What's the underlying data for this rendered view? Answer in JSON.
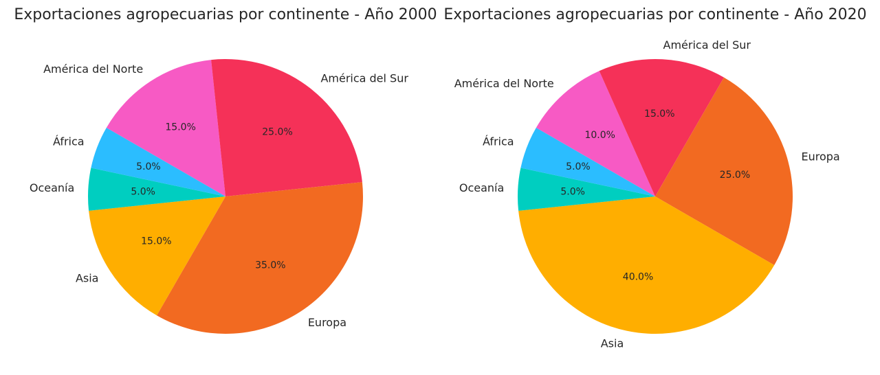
{
  "chart_data": [
    {
      "type": "pie",
      "title": "Exportaciones agropecuarias por continente - Año 2000",
      "startangle_deg": 150,
      "direction": "clockwise",
      "slices": [
        {
          "label": "América del Norte",
          "value": 15.0,
          "pct_label": "15.0%",
          "color": "#F75AC4"
        },
        {
          "label": "América del Sur",
          "value": 25.0,
          "pct_label": "25.0%",
          "color": "#F53158"
        },
        {
          "label": "Europa",
          "value": 35.0,
          "pct_label": "35.0%",
          "color": "#F26A21"
        },
        {
          "label": "Asia",
          "value": 15.0,
          "pct_label": "15.0%",
          "color": "#FFAE00"
        },
        {
          "label": "Oceanía",
          "value": 5.0,
          "pct_label": "5.0%",
          "color": "#00CEC0"
        },
        {
          "label": "África",
          "value": 5.0,
          "pct_label": "5.0%",
          "color": "#2BBDFF"
        }
      ]
    },
    {
      "type": "pie",
      "title": "Exportaciones agropecuarias por continente - Año 2020",
      "startangle_deg": 150,
      "direction": "clockwise",
      "slices": [
        {
          "label": "América del Norte",
          "value": 10.0,
          "pct_label": "10.0%",
          "color": "#F75AC4"
        },
        {
          "label": "América del Sur",
          "value": 15.0,
          "pct_label": "15.0%",
          "color": "#F53158"
        },
        {
          "label": "Europa",
          "value": 25.0,
          "pct_label": "25.0%",
          "color": "#F26A21"
        },
        {
          "label": "Asia",
          "value": 40.0,
          "pct_label": "40.0%",
          "color": "#FFAE00"
        },
        {
          "label": "Oceanía",
          "value": 5.0,
          "pct_label": "5.0%",
          "color": "#00CEC0"
        },
        {
          "label": "África",
          "value": 5.0,
          "pct_label": "5.0%",
          "color": "#2BBDFF"
        }
      ]
    }
  ]
}
